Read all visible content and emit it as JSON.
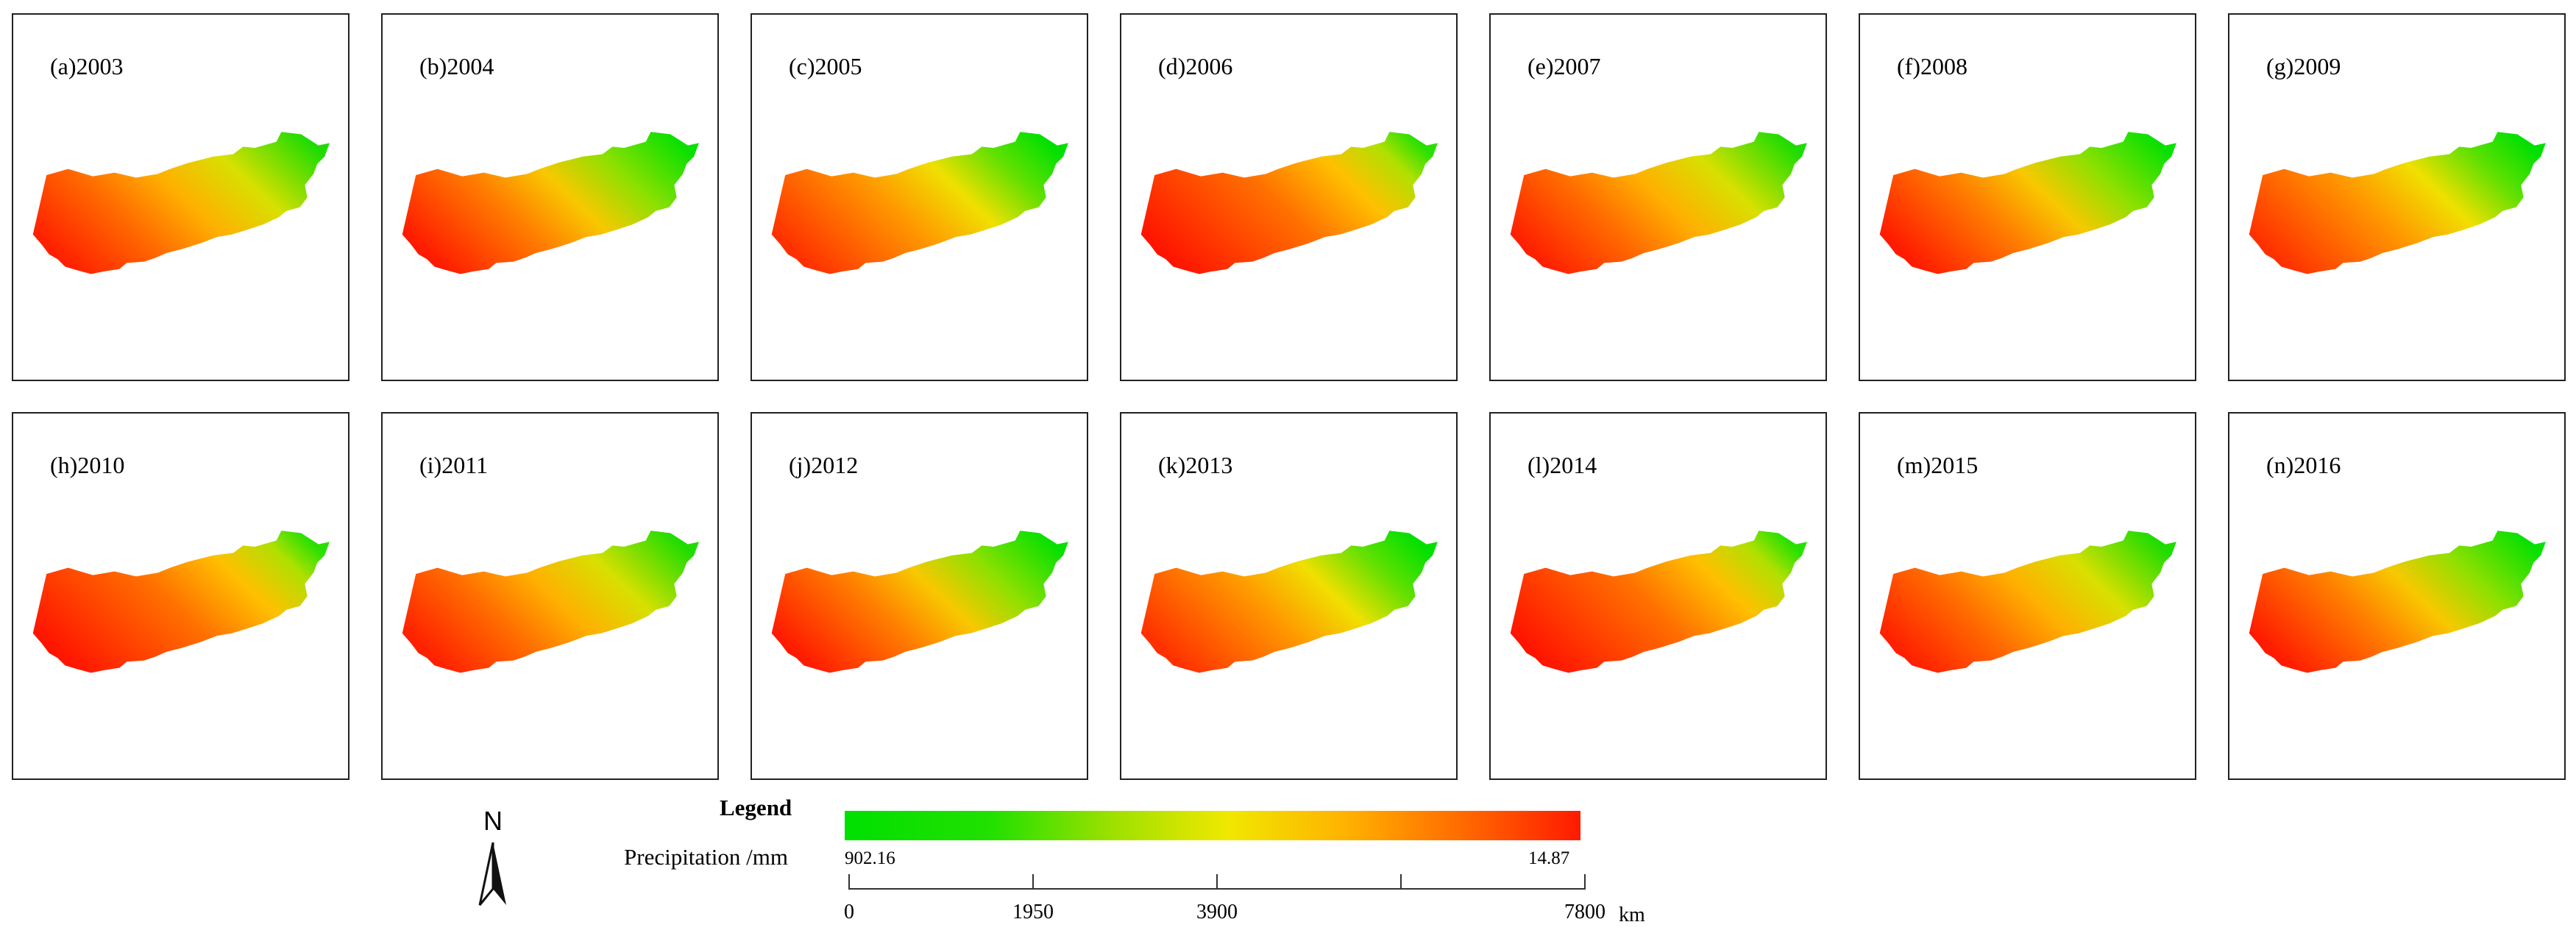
{
  "panels": [
    {
      "label": "(a)2003"
    },
    {
      "label": "(b)2004"
    },
    {
      "label": "(c)2005"
    },
    {
      "label": "(d)2006"
    },
    {
      "label": "(e)2007"
    },
    {
      "label": "(f)2008"
    },
    {
      "label": "(g)2009"
    },
    {
      "label": "(h)2010"
    },
    {
      "label": "(i)2011"
    },
    {
      "label": "(j)2012"
    },
    {
      "label": "(k)2013"
    },
    {
      "label": "(l)2014"
    },
    {
      "label": "(m)2015"
    },
    {
      "label": "(n)2016"
    }
  ],
  "legend": {
    "title": "Legend",
    "variable": "Precipitation /mm",
    "max_value": "902.16",
    "min_value": "14.87",
    "colors": {
      "high": "#00e000",
      "mid": "#f0e800",
      "low": "#ff1a00"
    }
  },
  "north_arrow": {
    "label": "N"
  },
  "scale_bar": {
    "ticks": [
      {
        "value": 0,
        "label": "0"
      },
      {
        "value": 1950,
        "label": "1950"
      },
      {
        "value": 3900,
        "label": "3900"
      },
      {
        "value": 5850,
        "label": ""
      },
      {
        "value": 7800,
        "label": "7800"
      }
    ],
    "max": 7800,
    "unit": "km"
  }
}
